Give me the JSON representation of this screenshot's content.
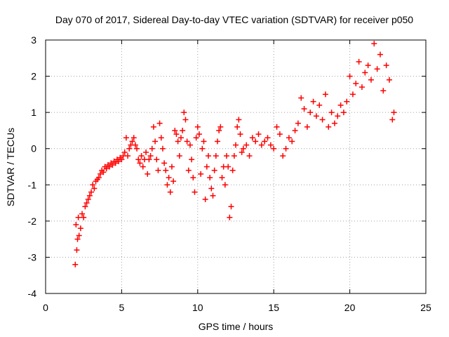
{
  "chart_data": {
    "type": "scatter",
    "title": "Day 070 of 2017, Sidereal Day-to-day VTEC variation (SDTVAR) for receiver p050",
    "xlabel": "GPS time / hours",
    "ylabel": "SDTVAR / TECUs",
    "xlim": [
      0,
      25
    ],
    "ylim": [
      -4,
      3
    ],
    "x_ticks": [
      0,
      5,
      10,
      15,
      20,
      25
    ],
    "y_ticks": [
      -4,
      -3,
      -2,
      -1,
      0,
      1,
      2,
      3
    ],
    "grid": true,
    "marker": "+",
    "series": [
      {
        "name": "SDTVAR",
        "color": "#ff0000",
        "x": [
          1.95,
          2.0,
          2.05,
          2.1,
          2.15,
          2.2,
          2.3,
          2.4,
          2.5,
          2.6,
          2.7,
          2.8,
          2.9,
          3.0,
          3.1,
          3.2,
          3.3,
          3.4,
          3.5,
          3.6,
          3.7,
          3.8,
          3.9,
          4.0,
          4.1,
          4.2,
          4.3,
          4.4,
          4.5,
          4.6,
          4.7,
          4.8,
          4.9,
          5.0,
          5.1,
          5.2,
          5.3,
          5.4,
          5.5,
          5.6,
          5.7,
          5.8,
          5.9,
          6.0,
          6.1,
          6.2,
          6.3,
          6.4,
          6.5,
          6.6,
          6.7,
          6.8,
          6.9,
          7.0,
          7.1,
          7.2,
          7.3,
          7.4,
          7.5,
          7.6,
          7.7,
          7.8,
          7.9,
          8.0,
          8.1,
          8.2,
          8.3,
          8.4,
          8.5,
          8.6,
          8.7,
          8.8,
          8.9,
          9.0,
          9.1,
          9.2,
          9.3,
          9.4,
          9.5,
          9.6,
          9.7,
          9.8,
          9.9,
          10.0,
          10.1,
          10.2,
          10.3,
          10.4,
          10.5,
          10.6,
          10.7,
          10.8,
          10.9,
          11.0,
          11.1,
          11.2,
          11.3,
          11.4,
          11.5,
          11.6,
          11.7,
          11.8,
          11.9,
          12.0,
          12.1,
          12.2,
          12.3,
          12.4,
          12.5,
          12.6,
          12.7,
          12.8,
          12.9,
          13.0,
          13.2,
          13.4,
          13.6,
          13.8,
          14.0,
          14.2,
          14.4,
          14.6,
          14.8,
          15.0,
          15.2,
          15.4,
          15.6,
          15.8,
          16.0,
          16.2,
          16.4,
          16.6,
          16.8,
          17.0,
          17.2,
          17.4,
          17.6,
          17.8,
          18.0,
          18.2,
          18.4,
          18.6,
          18.8,
          19.0,
          19.2,
          19.4,
          19.6,
          19.8,
          20.0,
          20.2,
          20.4,
          20.6,
          20.8,
          21.0,
          21.2,
          21.4,
          21.6,
          21.8,
          22.0,
          22.2,
          22.4,
          22.6,
          22.8,
          22.9
        ],
        "y": [
          -3.2,
          -2.1,
          -2.8,
          -2.5,
          -1.9,
          -2.4,
          -2.2,
          -1.8,
          -1.9,
          -1.6,
          -1.5,
          -1.4,
          -1.3,
          -1.2,
          -1.0,
          -1.1,
          -0.9,
          -0.85,
          -0.8,
          -0.7,
          -0.6,
          -0.65,
          -0.5,
          -0.55,
          -0.45,
          -0.5,
          -0.4,
          -0.45,
          -0.35,
          -0.4,
          -0.3,
          -0.35,
          -0.25,
          -0.3,
          -0.2,
          -0.1,
          0.3,
          -0.2,
          0.0,
          0.1,
          0.2,
          0.3,
          0.1,
          0.0,
          -0.3,
          -0.4,
          -0.2,
          -0.5,
          -0.3,
          -0.1,
          -0.7,
          -0.3,
          -0.2,
          0.0,
          0.6,
          0.2,
          -0.3,
          -0.6,
          0.7,
          0.3,
          0.0,
          -0.4,
          -0.6,
          -1.0,
          -0.8,
          -1.2,
          -0.5,
          -0.9,
          0.5,
          0.4,
          0.2,
          -0.2,
          0.3,
          0.5,
          1.0,
          0.8,
          0.2,
          -0.6,
          0.1,
          -0.3,
          -0.8,
          -1.2,
          0.3,
          0.6,
          0.4,
          -0.7,
          0.0,
          0.2,
          -1.4,
          -0.5,
          -0.2,
          -0.8,
          -1.1,
          -1.3,
          -0.6,
          -0.2,
          0.2,
          0.5,
          0.6,
          -0.8,
          -0.5,
          -1.0,
          -0.2,
          -0.5,
          -1.9,
          -1.6,
          -0.6,
          -0.2,
          0.1,
          0.6,
          0.8,
          0.4,
          -0.1,
          0.0,
          0.1,
          -0.2,
          0.3,
          0.2,
          0.4,
          0.1,
          0.2,
          0.3,
          0.1,
          0.0,
          0.6,
          0.4,
          -0.2,
          0.0,
          0.3,
          0.2,
          0.5,
          0.7,
          1.4,
          1.1,
          0.6,
          1.0,
          1.3,
          0.9,
          1.2,
          0.8,
          1.5,
          0.6,
          1.0,
          0.7,
          0.9,
          1.2,
          1.0,
          1.3,
          2.0,
          1.5,
          1.8,
          2.4,
          1.7,
          2.1,
          2.3,
          1.9,
          2.9,
          2.2,
          2.6,
          1.6,
          2.3,
          1.9,
          0.8,
          1.0
        ]
      }
    ]
  }
}
